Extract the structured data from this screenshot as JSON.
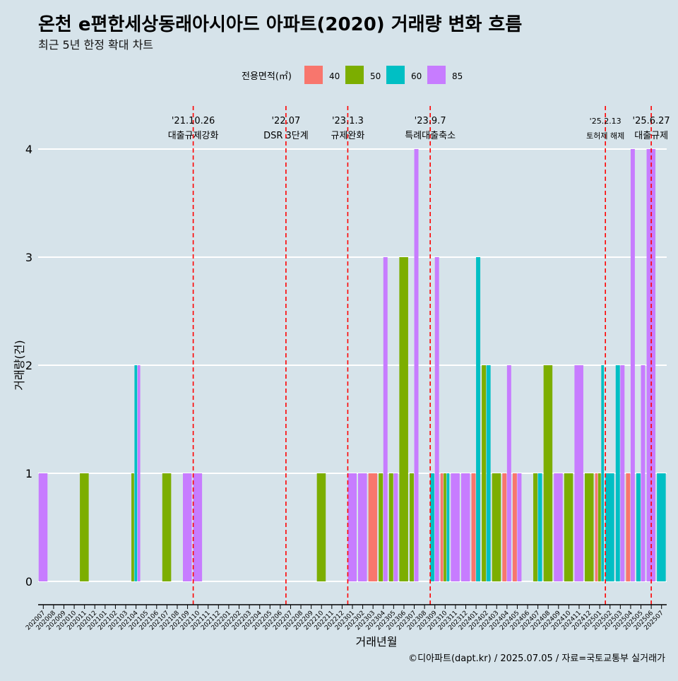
{
  "title": "온천 e편한세상동래아시아드 아파트(2020) 거래량 변화 흐름",
  "subtitle": "최근 5년 한정 확대 차트",
  "caption": "©디아파트(dapt.kr) / 2025.07.05 / 자료=국토교통부 실거래가",
  "colors": {
    "background": "#d6e3ea",
    "40": "#f8766d",
    "50": "#7cae00",
    "60": "#00bfc4",
    "85": "#c77cff",
    "event_line": "#ff0000"
  },
  "chart_data": {
    "type": "bar",
    "xlabel": "거래년월",
    "ylabel": "거래량(건)",
    "ylim": [
      0,
      4
    ],
    "yticks": [
      0,
      1,
      2,
      3,
      4
    ],
    "grid": true,
    "legend_title": "전용면적(㎡)",
    "legend_position": "top",
    "categories": [
      "202007",
      "202008",
      "202009",
      "202010",
      "202011",
      "202012",
      "202101",
      "202102",
      "202103",
      "202104",
      "202105",
      "202106",
      "202107",
      "202108",
      "202109",
      "202110",
      "202111",
      "202112",
      "202201",
      "202202",
      "202203",
      "202204",
      "202205",
      "202206",
      "202207",
      "202208",
      "202209",
      "202210",
      "202211",
      "202212",
      "202301",
      "202302",
      "202303",
      "202304",
      "202305",
      "202306",
      "202307",
      "202308",
      "202309",
      "202310",
      "202311",
      "202312",
      "202401",
      "202402",
      "202403",
      "202404",
      "202405",
      "202406",
      "202407",
      "202408",
      "202409",
      "202410",
      "202411",
      "202412",
      "202501",
      "202502",
      "202503",
      "202504",
      "202505",
      "202506",
      "202507"
    ],
    "series": [
      {
        "name": "40",
        "values": [
          0,
          0,
          0,
          0,
          0,
          0,
          0,
          0,
          0,
          0,
          0,
          0,
          0,
          0,
          0,
          0,
          0,
          0,
          0,
          0,
          0,
          0,
          0,
          0,
          0,
          0,
          0,
          0,
          0,
          0,
          0,
          0,
          1,
          0,
          0,
          0,
          0,
          0,
          0,
          1,
          0,
          0,
          1,
          0,
          0,
          1,
          1,
          0,
          0,
          0,
          0,
          0,
          0,
          0,
          1,
          0,
          0,
          1,
          0,
          0,
          0
        ]
      },
      {
        "name": "50",
        "values": [
          0,
          0,
          0,
          0,
          1,
          0,
          0,
          0,
          0,
          1,
          0,
          0,
          1,
          0,
          0,
          0,
          0,
          0,
          0,
          0,
          0,
          0,
          0,
          0,
          0,
          0,
          0,
          1,
          0,
          0,
          0,
          0,
          0,
          1,
          1,
          3,
          1,
          0,
          0,
          1,
          0,
          0,
          0,
          2,
          1,
          0,
          0,
          0,
          1,
          2,
          0,
          1,
          0,
          1,
          1,
          0,
          0,
          0,
          0,
          0,
          0
        ]
      },
      {
        "name": "60",
        "values": [
          0,
          0,
          0,
          0,
          0,
          0,
          0,
          0,
          0,
          2,
          0,
          0,
          0,
          0,
          0,
          0,
          0,
          0,
          0,
          0,
          0,
          0,
          0,
          0,
          0,
          0,
          0,
          0,
          0,
          0,
          0,
          0,
          0,
          0,
          0,
          0,
          0,
          0,
          1,
          1,
          0,
          0,
          3,
          2,
          0,
          0,
          0,
          0,
          1,
          0,
          0,
          0,
          0,
          0,
          2,
          1,
          2,
          0,
          1,
          0,
          1
        ]
      },
      {
        "name": "85",
        "values": [
          1,
          0,
          0,
          0,
          0,
          0,
          0,
          0,
          0,
          2,
          0,
          0,
          0,
          0,
          1,
          1,
          0,
          0,
          0,
          0,
          0,
          0,
          0,
          0,
          0,
          0,
          0,
          0,
          0,
          0,
          1,
          1,
          0,
          3,
          1,
          0,
          4,
          0,
          3,
          0,
          1,
          1,
          0,
          0,
          0,
          2,
          1,
          0,
          0,
          0,
          1,
          0,
          2,
          0,
          0,
          0,
          2,
          4,
          2,
          4,
          0
        ]
      }
    ],
    "annotations": [
      {
        "date": "'21.10.26",
        "label": "대출규제강화",
        "x": "202110"
      },
      {
        "date": "'22.07",
        "label": "DSR 3단계",
        "x": "202207"
      },
      {
        "date": "'23.1.3",
        "label": "규제완화",
        "x": "202301"
      },
      {
        "date": "'23.9.7",
        "label": "특례대출축소",
        "x": "202309"
      },
      {
        "date": "'25.2.13",
        "label": "토허제 해제",
        "x": "202502"
      },
      {
        "date": "'25.6.27",
        "label": "대출규제",
        "x": "202506"
      }
    ]
  }
}
